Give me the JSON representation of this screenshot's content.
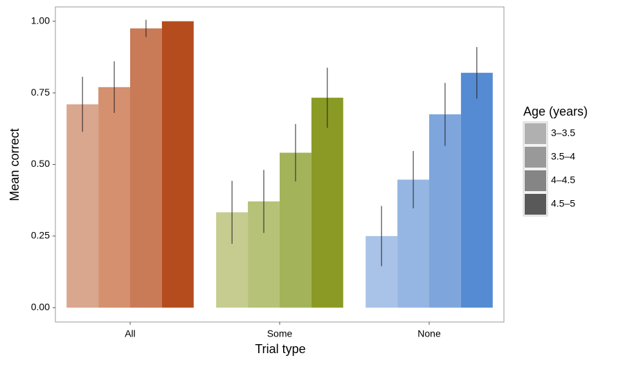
{
  "chart_data": {
    "type": "bar",
    "x_label": "Trial type",
    "y_label": "Mean correct",
    "categories": [
      "All",
      "Some",
      "None"
    ],
    "legend_title": "Age (years)",
    "series": [
      {
        "name": "3–3.5",
        "color": "#b0b0b0",
        "bar_colors": [
          "#d9a68e",
          "#c6cc8f",
          "#a9c3e8"
        ],
        "values": [
          0.71,
          0.333,
          0.25
        ],
        "errors": [
          0.096,
          0.11,
          0.105
        ]
      },
      {
        "name": "3.5–4",
        "color": "#999999",
        "bar_colors": [
          "#d4906f",
          "#b5c277",
          "#95b6e2"
        ],
        "values": [
          0.77,
          0.371,
          0.447
        ],
        "errors": [
          0.09,
          0.11,
          0.1
        ]
      },
      {
        "name": "4–4.5",
        "color": "#858585",
        "bar_colors": [
          "#c97a57",
          "#a3b35a",
          "#7ea5dc"
        ],
        "values": [
          0.975,
          0.541,
          0.675
        ],
        "errors": [
          0.03,
          0.1,
          0.11
        ]
      },
      {
        "name": "4.5–5",
        "color": "#595959",
        "bar_colors": [
          "#b44c1e",
          "#8a9a24",
          "#558bd3"
        ],
        "values": [
          1.0,
          0.733,
          0.82
        ],
        "errors": [
          0,
          0.105,
          0.09
        ]
      }
    ],
    "ylim": [
      -0.05,
      1.05
    ],
    "yticks": [
      {
        "value": 0,
        "label": "0.00"
      },
      {
        "value": 0.25,
        "label": "0.25"
      },
      {
        "value": 0.5,
        "label": "0.50"
      },
      {
        "value": 0.75,
        "label": "0.75"
      },
      {
        "value": 1,
        "label": "1.00"
      }
    ],
    "grid": false,
    "legend": "right"
  }
}
